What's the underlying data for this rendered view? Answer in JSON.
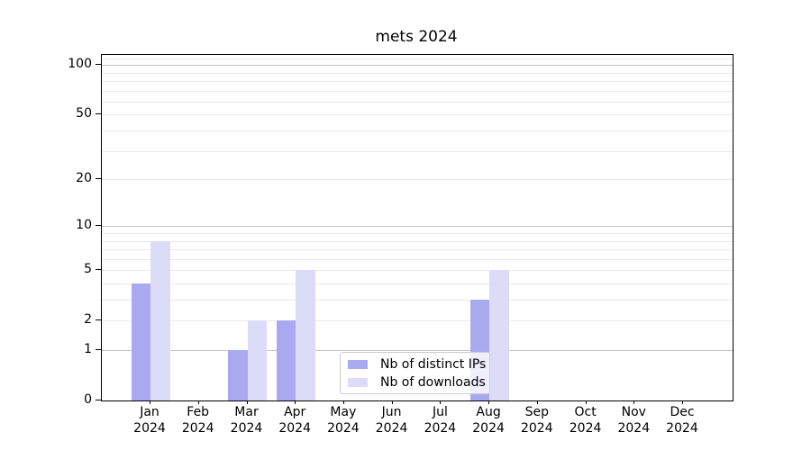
{
  "figure": {
    "background": "#ffffff"
  },
  "chart_data": {
    "type": "bar",
    "title": "mets 2024",
    "categories": [
      "Jan",
      "Feb",
      "Mar",
      "Apr",
      "May",
      "Jun",
      "Jul",
      "Aug",
      "Sep",
      "Oct",
      "Nov",
      "Dec"
    ],
    "category_year": "2024",
    "series": [
      {
        "name": "Nb of distinct IPs",
        "color": "#a9a9f0",
        "values": [
          4,
          0,
          1,
          2,
          0,
          0,
          0,
          3,
          0,
          0,
          0,
          0
        ]
      },
      {
        "name": "Nb of downloads",
        "color": "#dcdcf8",
        "values": [
          8,
          0,
          2,
          5,
          0,
          0,
          0,
          5,
          0,
          0,
          0,
          0
        ]
      }
    ],
    "xlabel": "",
    "ylabel": "",
    "yscale": "log1p",
    "ylim": [
      0,
      115
    ],
    "yticks_labeled": [
      0,
      1,
      2,
      5,
      10,
      20,
      50,
      100
    ],
    "yticks_major_grid": [
      1,
      10,
      100
    ],
    "yticks_minor_grid": [
      2,
      3,
      4,
      5,
      6,
      7,
      8,
      9,
      20,
      30,
      40,
      50,
      60,
      70,
      80,
      90,
      110
    ],
    "grid": true,
    "legend_position": "lower center",
    "legend_entries": [
      "Nb of distinct IPs",
      "Nb of downloads"
    ]
  }
}
